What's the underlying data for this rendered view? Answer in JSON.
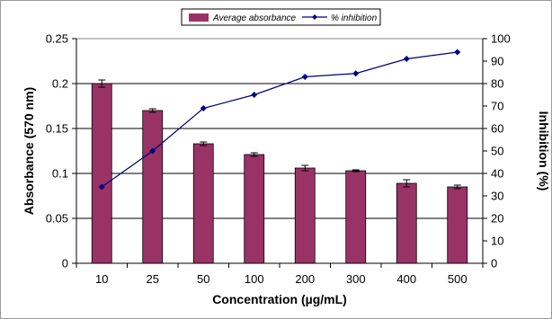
{
  "chart_data": {
    "type": "bar",
    "categories": [
      "10",
      "25",
      "50",
      "100",
      "200",
      "300",
      "400",
      "500"
    ],
    "series": [
      {
        "name": "Average absorbance",
        "type": "bar",
        "axis": "left",
        "values": [
          0.2,
          0.17,
          0.133,
          0.121,
          0.106,
          0.103,
          0.089,
          0.085
        ],
        "errors": [
          0.004,
          0.002,
          0.002,
          0.002,
          0.003,
          0.001,
          0.004,
          0.002
        ],
        "color": "#993366"
      },
      {
        "name": "% inhibition",
        "type": "line",
        "axis": "right",
        "values": [
          34,
          50,
          69,
          75,
          83,
          84.5,
          91,
          94
        ],
        "color": "#000080"
      }
    ],
    "xlabel": "Concentration (µg/mL)",
    "ylabel": "Absorbance (570 nm)",
    "y2label": "Inhibition (%)",
    "ylim": [
      0,
      0.25
    ],
    "y2lim": [
      0,
      100
    ],
    "yticks": [
      "0",
      "0.05",
      "0.1",
      "0.15",
      "0.2",
      "0.25"
    ],
    "y2ticks": [
      "0",
      "10",
      "20",
      "30",
      "40",
      "50",
      "60",
      "70",
      "80",
      "90",
      "100"
    ],
    "grid": true,
    "legend_position": "top"
  }
}
